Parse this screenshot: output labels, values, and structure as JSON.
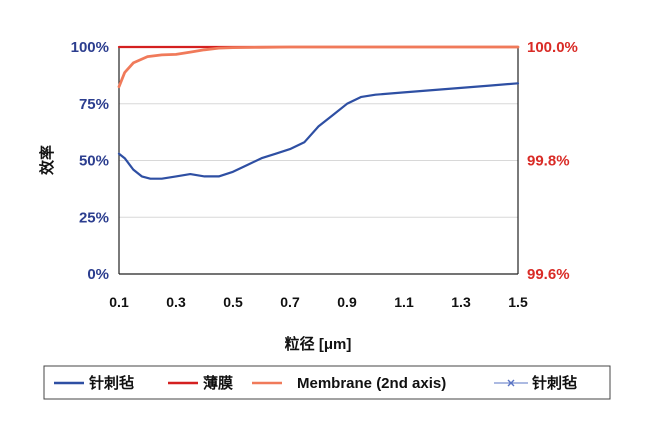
{
  "chart_data": {
    "type": "line",
    "xlabel": "粒径 [μm]",
    "ylabel": "效率",
    "x_ticks": [
      "0.1",
      "0.3",
      "0.5",
      "0.7",
      "0.9",
      "1.1",
      "1.3",
      "1.5"
    ],
    "xlim": [
      0.1,
      1.5
    ],
    "y_left": {
      "ticks": [
        "100%",
        "75%",
        "50%",
        "25%",
        "0%"
      ],
      "ylim": [
        0,
        100
      ]
    },
    "y_right": {
      "ticks": [
        "100.0%",
        "99.8%",
        "99.6%"
      ],
      "ylim": [
        99.6,
        100.0
      ]
    },
    "grid": true,
    "legend_position": "bottom",
    "series": [
      {
        "name": "针刺毡",
        "axis": "left",
        "color": "#2e4fa3",
        "x": [
          0.1,
          0.12,
          0.15,
          0.18,
          0.21,
          0.25,
          0.3,
          0.35,
          0.4,
          0.45,
          0.5,
          0.55,
          0.6,
          0.65,
          0.7,
          0.75,
          0.8,
          0.85,
          0.9,
          0.95,
          1.0,
          1.1,
          1.2,
          1.3,
          1.4,
          1.5
        ],
        "y": [
          53,
          51,
          46,
          43,
          42,
          42,
          43,
          44,
          43,
          43,
          45,
          48,
          51,
          53,
          55,
          58,
          65,
          70,
          75,
          78,
          79,
          80,
          81,
          82,
          83,
          84
        ]
      },
      {
        "name": "薄膜",
        "axis": "left",
        "color": "#d42020",
        "x": [
          0.1,
          1.5
        ],
        "y": [
          100,
          100
        ]
      },
      {
        "name": "Membrane (2nd axis)",
        "axis": "right",
        "color": "#f07a5a",
        "x": [
          0.1,
          0.12,
          0.15,
          0.2,
          0.25,
          0.3,
          0.35,
          0.4,
          0.45,
          0.5,
          0.6,
          0.7,
          0.8,
          1.0,
          1.5
        ],
        "y": [
          99.93,
          99.955,
          99.972,
          99.983,
          99.986,
          99.987,
          99.991,
          99.995,
          99.998,
          99.999,
          99.9995,
          100.0,
          100.0,
          100.0,
          100.0
        ]
      },
      {
        "name": "针刺毡",
        "axis": "left",
        "color": "#5a74c4",
        "marker": "x",
        "x": [],
        "y": []
      }
    ]
  }
}
